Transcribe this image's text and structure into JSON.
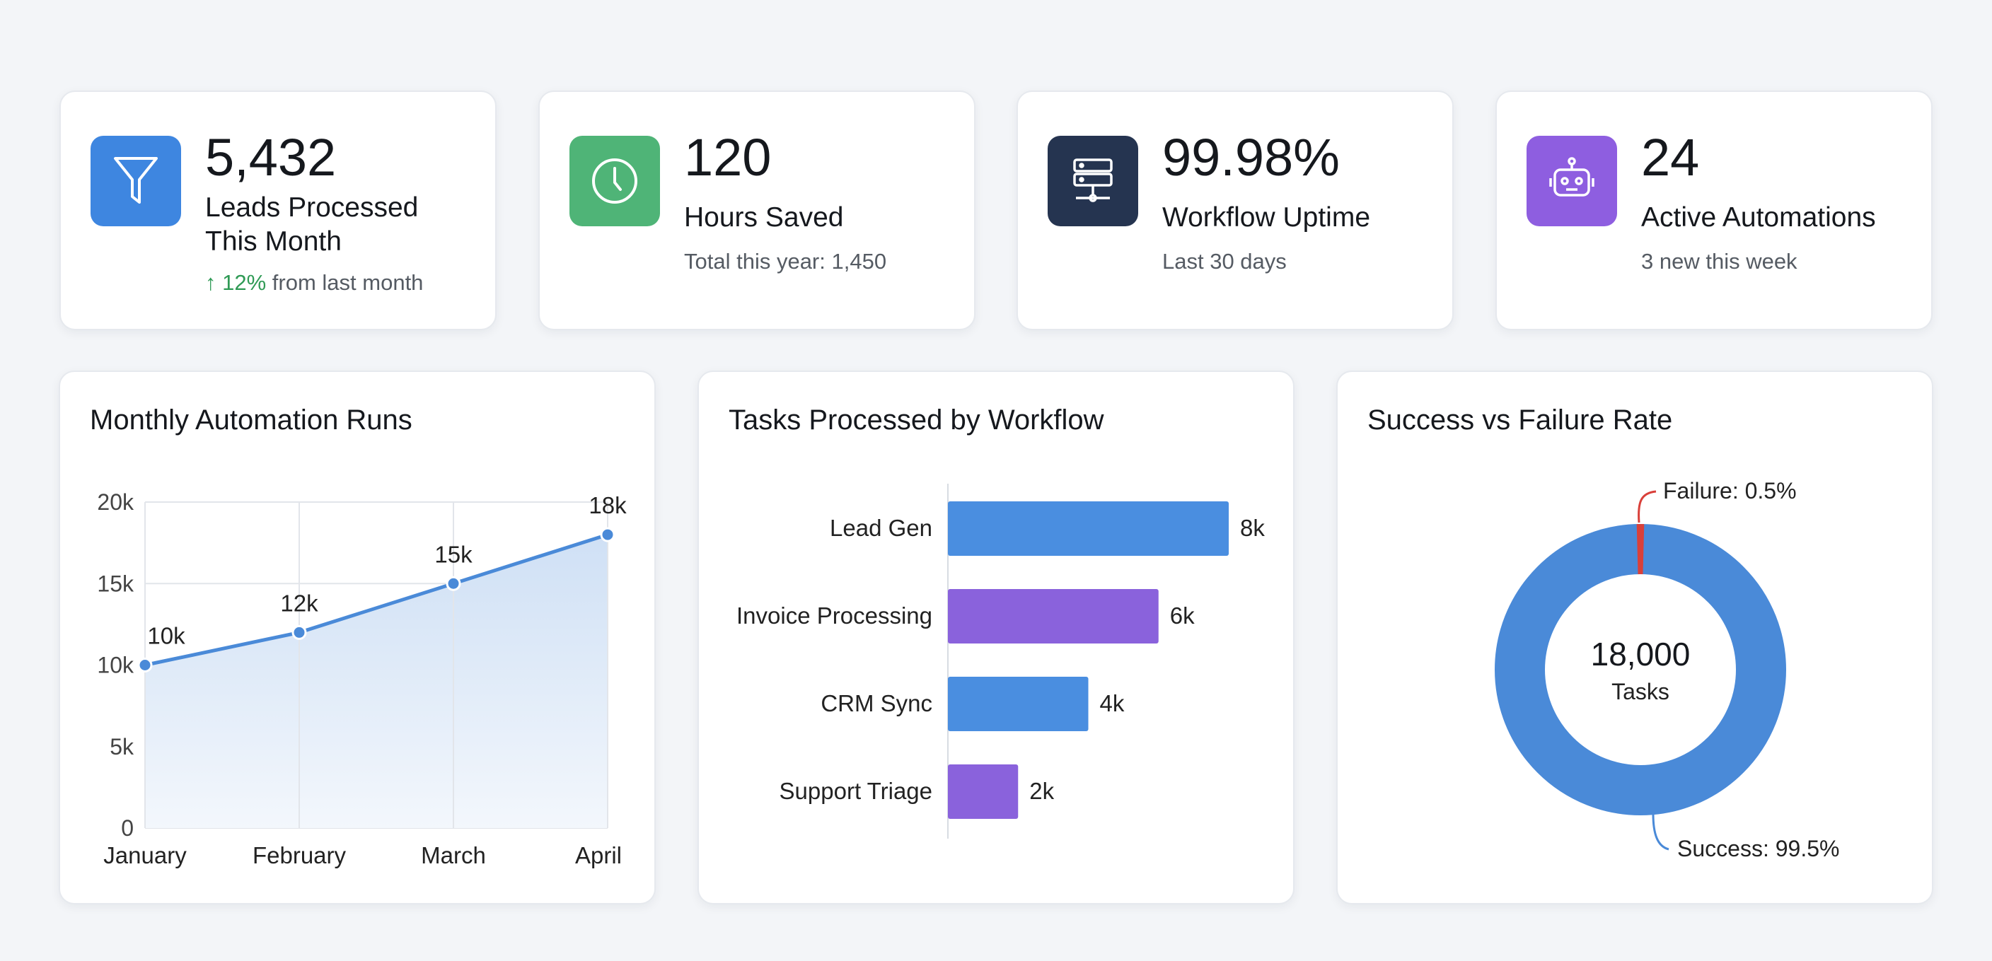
{
  "kpis": [
    {
      "value": "5,432",
      "label_line1": "Leads Processed",
      "label_line2": "This Month",
      "trend_arrow": "↑",
      "trend_value": "12%",
      "trend_text": "from last month",
      "icon": "funnel-icon",
      "color": "#3e86e0"
    },
    {
      "value": "120",
      "label": "Hours Saved",
      "sub": "Total this year: 1,450",
      "icon": "clock-icon",
      "color": "#4fb477"
    },
    {
      "value": "99.98%",
      "label": "Workflow Uptime",
      "sub": "Last 30 days",
      "icon": "server-icon",
      "color": "#253450"
    },
    {
      "value": "24",
      "label": "Active Automations",
      "sub": "3 new this week",
      "icon": "robot-icon",
      "color": "#8e5ee0"
    }
  ],
  "colors": {
    "trend_up": "#2f9a55",
    "line": "#4a8ad8",
    "bar_blue": "#4a8ee0",
    "bar_purple": "#8a62dc",
    "failure": "#d9403a"
  },
  "chart_data": [
    {
      "type": "line",
      "title": "Monthly Automation Runs",
      "categories": [
        "January",
        "February",
        "March",
        "April"
      ],
      "values": [
        10000,
        12000,
        15000,
        18000
      ],
      "data_labels": [
        "10k",
        "12k",
        "15k",
        "18k"
      ],
      "yticks": [
        "0",
        "5k",
        "10k",
        "15k",
        "20k"
      ],
      "ylim": [
        0,
        20000
      ],
      "grid": true,
      "area_fill": true
    },
    {
      "type": "bar",
      "orientation": "horizontal",
      "title": "Tasks Processed by Workflow",
      "categories": [
        "Lead Gen",
        "Invoice Processing",
        "CRM Sync",
        "Support Triage"
      ],
      "values": [
        8000,
        6000,
        4000,
        2000
      ],
      "data_labels": [
        "8k",
        "6k",
        "4k",
        "2k"
      ]
    },
    {
      "type": "pie",
      "donut": true,
      "title": "Success vs Failure Rate",
      "center_value": "18,000",
      "center_label": "Tasks",
      "slices": [
        {
          "name": "Success",
          "value": 99.5,
          "label": "Success: 99.5%"
        },
        {
          "name": "Failure",
          "value": 0.5,
          "label": "Failure: 0.5%"
        }
      ]
    }
  ]
}
